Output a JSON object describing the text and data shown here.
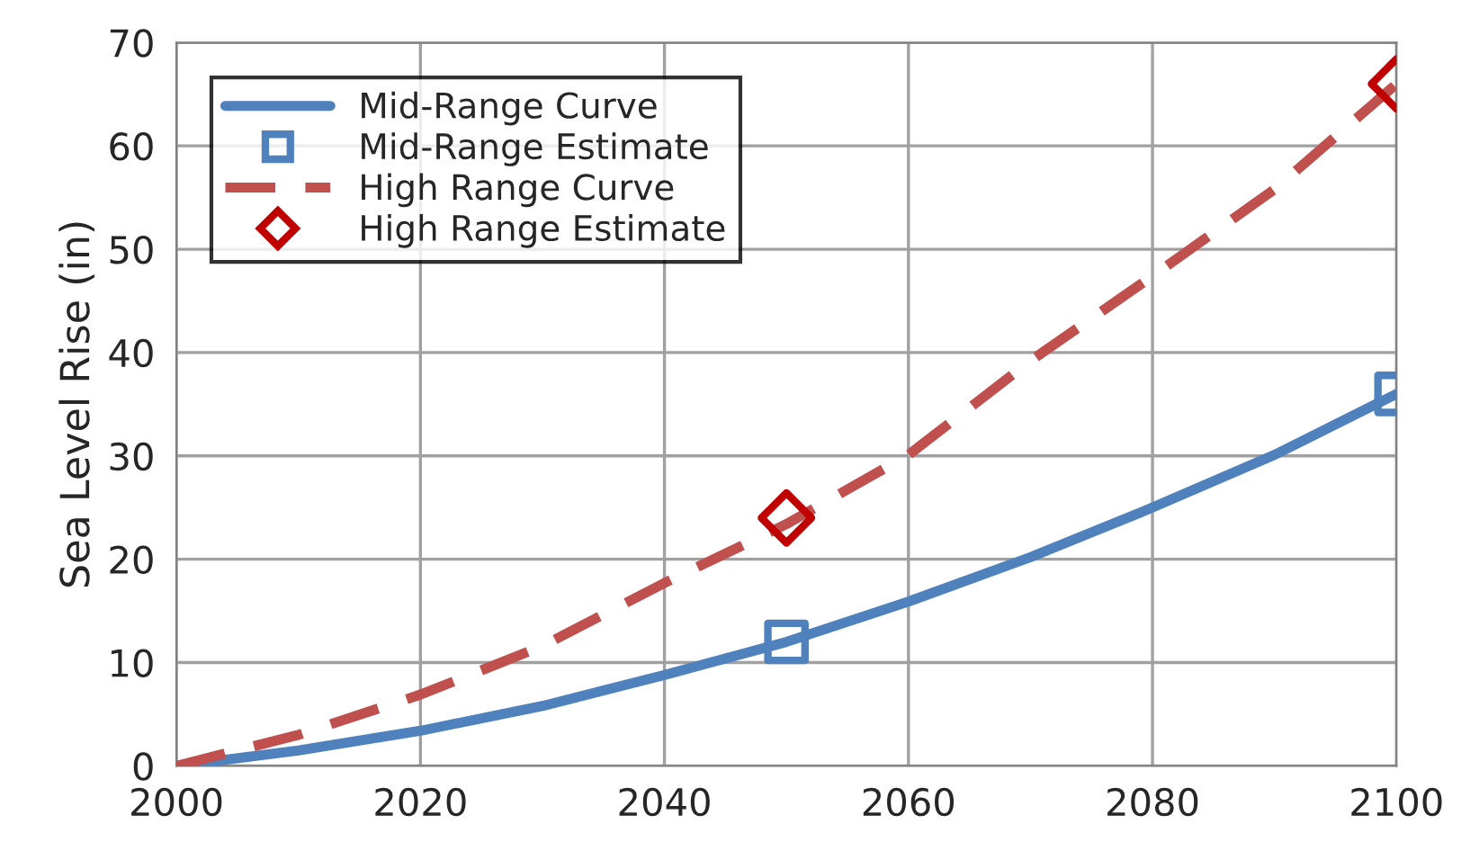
{
  "chart_data": {
    "type": "line",
    "ylabel": "Sea Level Rise (in)",
    "xlim": [
      2000,
      2100
    ],
    "xticks": [
      2000,
      2020,
      2040,
      2060,
      2080,
      2100
    ],
    "ylim": [
      0,
      70
    ],
    "yticks": [
      0,
      10,
      20,
      30,
      40,
      50,
      60,
      70
    ],
    "grid": true,
    "legend": "top left",
    "series": [
      {
        "name": "Mid-Range Curve",
        "color": "#4f81bd",
        "line_style": "solid",
        "marker": "none",
        "x": [
          2000,
          2010,
          2020,
          2030,
          2040,
          2050,
          2060,
          2070,
          2080,
          2090,
          2100
        ],
        "values": [
          0,
          1.5,
          3.4,
          5.8,
          8.8,
          12,
          15.9,
          20.2,
          25,
          30.1,
          36
        ]
      },
      {
        "name": "Mid-Range Estimate",
        "type": "scatter",
        "color": "#4f81bd",
        "marker": "square",
        "x": [
          2050,
          2100
        ],
        "values": [
          12,
          36
        ]
      },
      {
        "name": "High Range Curve",
        "color": "#c0504d",
        "line_style": "dashed",
        "marker": "none",
        "x": [
          2000,
          2010,
          2020,
          2030,
          2040,
          2050,
          2060,
          2070,
          2080,
          2090,
          2100
        ],
        "values": [
          0,
          3,
          6.9,
          11.6,
          17.7,
          23.4,
          30.1,
          39.2,
          47.4,
          55.8,
          66
        ]
      },
      {
        "name": "High Range Estimate",
        "type": "scatter",
        "color": "#c00000",
        "marker": "diamond",
        "x": [
          2050,
          2100
        ],
        "values": [
          24,
          66
        ]
      }
    ]
  }
}
